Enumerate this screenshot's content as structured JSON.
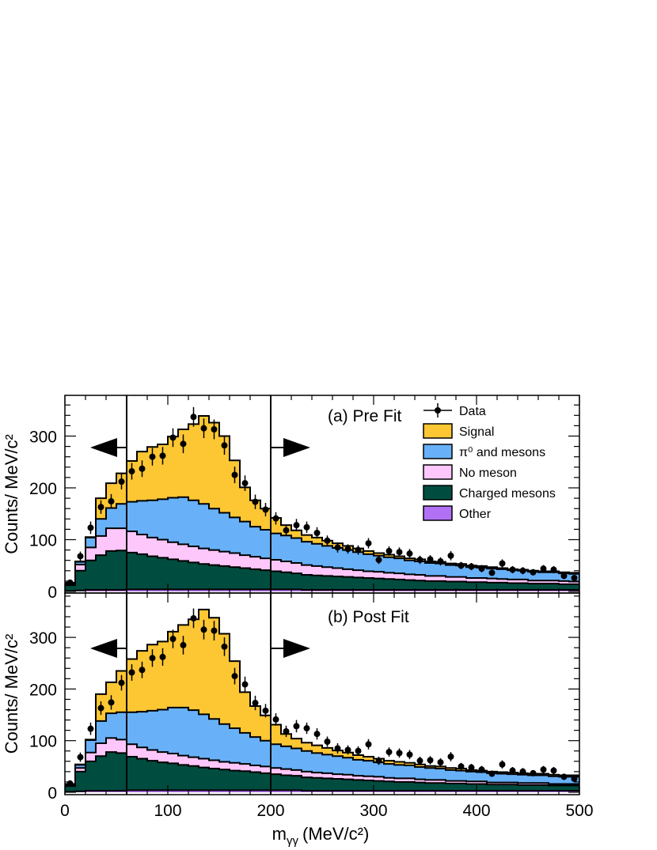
{
  "chart_data": {
    "type": "area",
    "x": [
      0,
      10,
      20,
      30,
      40,
      50,
      60,
      70,
      80,
      90,
      100,
      110,
      120,
      130,
      140,
      150,
      160,
      170,
      180,
      190,
      200,
      210,
      220,
      230,
      240,
      250,
      260,
      270,
      280,
      290,
      300,
      310,
      320,
      330,
      340,
      350,
      360,
      370,
      380,
      390,
      400,
      410,
      420,
      430,
      440,
      450,
      460,
      470,
      480,
      490
    ],
    "bin_width": 10,
    "xlim": [
      0,
      500
    ],
    "xlabel": "m",
    "xlabel_sub": "γγ",
    "xlabel_unit": "(MeV/c²)",
    "x_ticks": [
      0,
      100,
      200,
      300,
      400,
      500
    ],
    "x_tick_labels": [
      "0",
      "100",
      "200",
      "300",
      "400",
      "500"
    ],
    "ylabel": "Counts/ MeV/c²",
    "legend_placement": "top-right",
    "selection_lines": [
      60,
      200
    ],
    "legend": [
      {
        "key": "data",
        "label": "Data"
      },
      {
        "key": "signal",
        "label": "Signal"
      },
      {
        "key": "pi0",
        "label": "π⁰ and mesons"
      },
      {
        "key": "nomeson",
        "label": "No meson"
      },
      {
        "key": "charged",
        "label": "Charged mesons"
      },
      {
        "key": "other",
        "label": "Other"
      }
    ],
    "colors": {
      "signal": "#fdc734",
      "pi0": "#68b1f9",
      "nomeson": "#fdc7fb",
      "charged": "#004d40",
      "other": "#b271f5"
    },
    "data_points": {
      "x": [
        5,
        15,
        25,
        35,
        45,
        55,
        65,
        75,
        85,
        95,
        105,
        115,
        125,
        135,
        145,
        155,
        165,
        175,
        185,
        195,
        205,
        215,
        225,
        235,
        245,
        255,
        265,
        275,
        285,
        295,
        305,
        315,
        325,
        335,
        345,
        355,
        365,
        375,
        385,
        395,
        405,
        415,
        425,
        435,
        445,
        455,
        465,
        475,
        485,
        495
      ],
      "y": [
        17,
        68,
        123,
        163,
        174,
        212,
        232,
        237,
        260,
        262,
        297,
        285,
        337,
        315,
        313,
        282,
        225,
        209,
        173,
        158,
        141,
        118,
        128,
        124,
        113,
        98,
        85,
        82,
        80,
        93,
        61,
        78,
        76,
        73,
        61,
        62,
        58,
        69,
        50,
        48,
        44,
        36,
        54,
        42,
        40,
        37,
        44,
        42,
        30,
        26
      ],
      "yerr": [
        5,
        9,
        12,
        13,
        14,
        15,
        16,
        16,
        17,
        17,
        18,
        18,
        19,
        19,
        19,
        18,
        16,
        15,
        14,
        13,
        12,
        11,
        12,
        11,
        11,
        10,
        10,
        9,
        9,
        10,
        8,
        9,
        9,
        9,
        8,
        8,
        8,
        9,
        7,
        7,
        7,
        6,
        8,
        7,
        7,
        6,
        7,
        7,
        6,
        5
      ]
    },
    "panels": [
      {
        "label": "(a) Pre Fit",
        "ylim": [
          0,
          380
        ],
        "y_ticks": [
          0,
          100,
          200,
          300
        ],
        "y_tick_labels": [
          "0",
          "100",
          "200",
          "300"
        ],
        "stack": {
          "other": [
            1,
            2,
            3,
            3,
            3,
            3,
            4,
            4,
            4,
            4,
            4,
            4,
            4,
            4,
            4,
            4,
            4,
            4,
            4,
            4,
            4,
            4,
            4,
            3,
            3,
            3,
            3,
            3,
            3,
            3,
            3,
            3,
            3,
            3,
            3,
            3,
            3,
            3,
            3,
            3,
            3,
            3,
            3,
            3,
            3,
            3,
            3,
            3,
            3,
            3
          ],
          "charged": [
            11,
            38,
            57,
            67,
            75,
            76,
            71,
            68,
            64,
            61,
            58,
            55,
            52,
            49,
            47,
            45,
            43,
            41,
            39,
            37,
            35,
            33,
            31,
            29,
            28,
            27,
            26,
            25,
            24,
            23,
            22,
            21,
            20,
            19,
            18,
            17,
            17,
            16,
            16,
            15,
            15,
            14,
            14,
            13,
            13,
            12,
            12,
            12,
            11,
            11
          ],
          "nomeson": [
            2,
            12,
            25,
            37,
            44,
            43,
            41,
            38,
            36,
            35,
            33,
            32,
            31,
            30,
            29,
            28,
            27,
            25,
            24,
            23,
            22,
            21,
            20,
            19,
            18,
            17,
            16,
            15,
            14,
            13,
            13,
            12,
            12,
            11,
            11,
            10,
            10,
            9,
            9,
            8,
            8,
            8,
            7,
            7,
            7,
            6,
            6,
            6,
            6,
            5
          ],
          "pi0": [
            2,
            5,
            19,
            33,
            39,
            47,
            57,
            65,
            72,
            78,
            86,
            91,
            89,
            86,
            80,
            75,
            69,
            65,
            58,
            55,
            51,
            50,
            48,
            45,
            43,
            41,
            39,
            37,
            35,
            33,
            31,
            30,
            29,
            27,
            26,
            25,
            24,
            23,
            22,
            21,
            20,
            19,
            19,
            18,
            17,
            17,
            16,
            16,
            15,
            15
          ],
          "signal": [
            1,
            1,
            1,
            40,
            48,
            59,
            79,
            95,
            103,
            106,
            118,
            131,
            147,
            170,
            166,
            148,
            110,
            66,
            51,
            41,
            30,
            20,
            15,
            13,
            12,
            10,
            9,
            8,
            7,
            6,
            5,
            5,
            4,
            4,
            4,
            3,
            3,
            3,
            3,
            3,
            3,
            3,
            2,
            2,
            2,
            2,
            2,
            2,
            2,
            2
          ]
        }
      },
      {
        "label": "(b) Post Fit",
        "ylim": [
          0,
          380
        ],
        "y_ticks": [
          0,
          100,
          200,
          300
        ],
        "y_tick_labels": [
          "0",
          "100",
          "200",
          "300"
        ],
        "stack": {
          "other": [
            1,
            2,
            3,
            3,
            3,
            3,
            4,
            4,
            4,
            4,
            4,
            4,
            4,
            4,
            4,
            4,
            4,
            4,
            4,
            4,
            4,
            4,
            4,
            3,
            3,
            3,
            3,
            3,
            3,
            3,
            3,
            3,
            3,
            3,
            3,
            3,
            3,
            3,
            3,
            3,
            3,
            3,
            3,
            3,
            3,
            3,
            3,
            3,
            3,
            3
          ],
          "charged": [
            11,
            38,
            57,
            67,
            75,
            73,
            65,
            61,
            57,
            54,
            52,
            49,
            47,
            44,
            42,
            40,
            38,
            37,
            35,
            33,
            31,
            29,
            28,
            26,
            25,
            24,
            23,
            22,
            21,
            20,
            19,
            18,
            17,
            17,
            16,
            15,
            15,
            14,
            14,
            13,
            13,
            12,
            12,
            12,
            11,
            11,
            11,
            10,
            10,
            10
          ],
          "nomeson": [
            1,
            7,
            17,
            25,
            27,
            26,
            24,
            22,
            21,
            20,
            19,
            18,
            17,
            17,
            16,
            15,
            15,
            14,
            13,
            13,
            12,
            12,
            11,
            11,
            10,
            10,
            9,
            9,
            8,
            8,
            8,
            7,
            7,
            7,
            6,
            6,
            6,
            5,
            5,
            5,
            5,
            4,
            4,
            4,
            4,
            4,
            4,
            3,
            3,
            3
          ],
          "pi0": [
            2,
            6,
            24,
            43,
            48,
            53,
            62,
            69,
            76,
            82,
            89,
            93,
            91,
            86,
            80,
            73,
            67,
            60,
            55,
            50,
            46,
            44,
            42,
            40,
            38,
            36,
            35,
            33,
            31,
            30,
            28,
            27,
            26,
            25,
            24,
            23,
            22,
            21,
            20,
            19,
            18,
            18,
            17,
            16,
            16,
            15,
            15,
            15,
            14,
            14
          ],
          "signal": [
            1,
            1,
            1,
            52,
            60,
            80,
            103,
            118,
            128,
            132,
            147,
            160,
            176,
            203,
            196,
            175,
            130,
            79,
            60,
            49,
            38,
            24,
            19,
            16,
            15,
            13,
            11,
            10,
            9,
            8,
            7,
            6,
            6,
            5,
            5,
            4,
            4,
            4,
            4,
            3,
            3,
            3,
            3,
            3,
            3,
            3,
            3,
            3,
            3,
            3
          ]
        }
      }
    ]
  }
}
